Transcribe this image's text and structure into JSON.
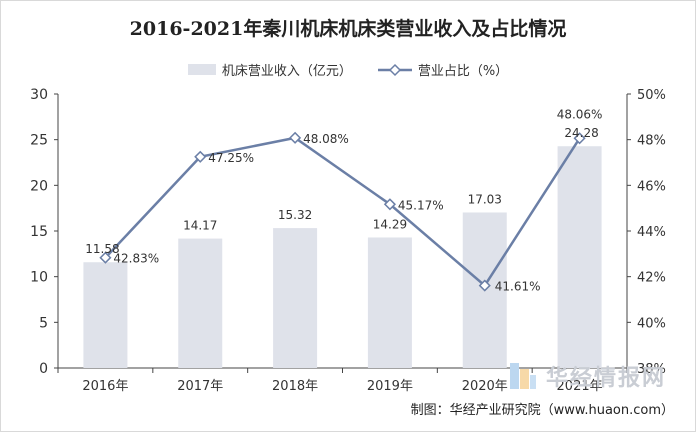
{
  "title": "2016-2021年秦川机床机床类营业收入及占比情况",
  "legend": {
    "bar_label": "机床营业收入（亿元）",
    "line_label": "营业占比（%）"
  },
  "watermark": "华经情报网",
  "source": "制图：华经产业研究院（www.huaon.com）",
  "colors": {
    "bar": "#dfe2ea",
    "line": "#6b7fa6",
    "marker_fill": "#ffffff",
    "axis": "#444444"
  },
  "chart_data": {
    "type": "bar",
    "title": "2016-2021年秦川机床机床类营业收入及占比情况",
    "categories": [
      "2016年",
      "2017年",
      "2018年",
      "2019年",
      "2020年",
      "2021年"
    ],
    "series": [
      {
        "name": "机床营业收入（亿元）",
        "type": "bar",
        "axis": "left",
        "values": [
          11.58,
          14.17,
          15.32,
          14.29,
          17.03,
          24.28
        ],
        "labels": [
          "11.58",
          "14.17",
          "15.32",
          "14.29",
          "17.03",
          "24.28"
        ]
      },
      {
        "name": "营业占比（%）",
        "type": "line",
        "axis": "right",
        "values": [
          42.83,
          47.25,
          48.08,
          45.17,
          41.61,
          48.06
        ],
        "labels": [
          "42.83%",
          "47.25%",
          "48.08%",
          "45.17%",
          "41.61%",
          "48.06%"
        ]
      }
    ],
    "y_left": {
      "lim": [
        0,
        30
      ],
      "ticks": [
        "0",
        "5",
        "10",
        "15",
        "20",
        "25",
        "30"
      ]
    },
    "y_right": {
      "lim": [
        38,
        50
      ],
      "ticks": [
        "38%",
        "40%",
        "42%",
        "44%",
        "46%",
        "48%",
        "50%"
      ]
    },
    "grid": false,
    "legend_position": "top"
  }
}
